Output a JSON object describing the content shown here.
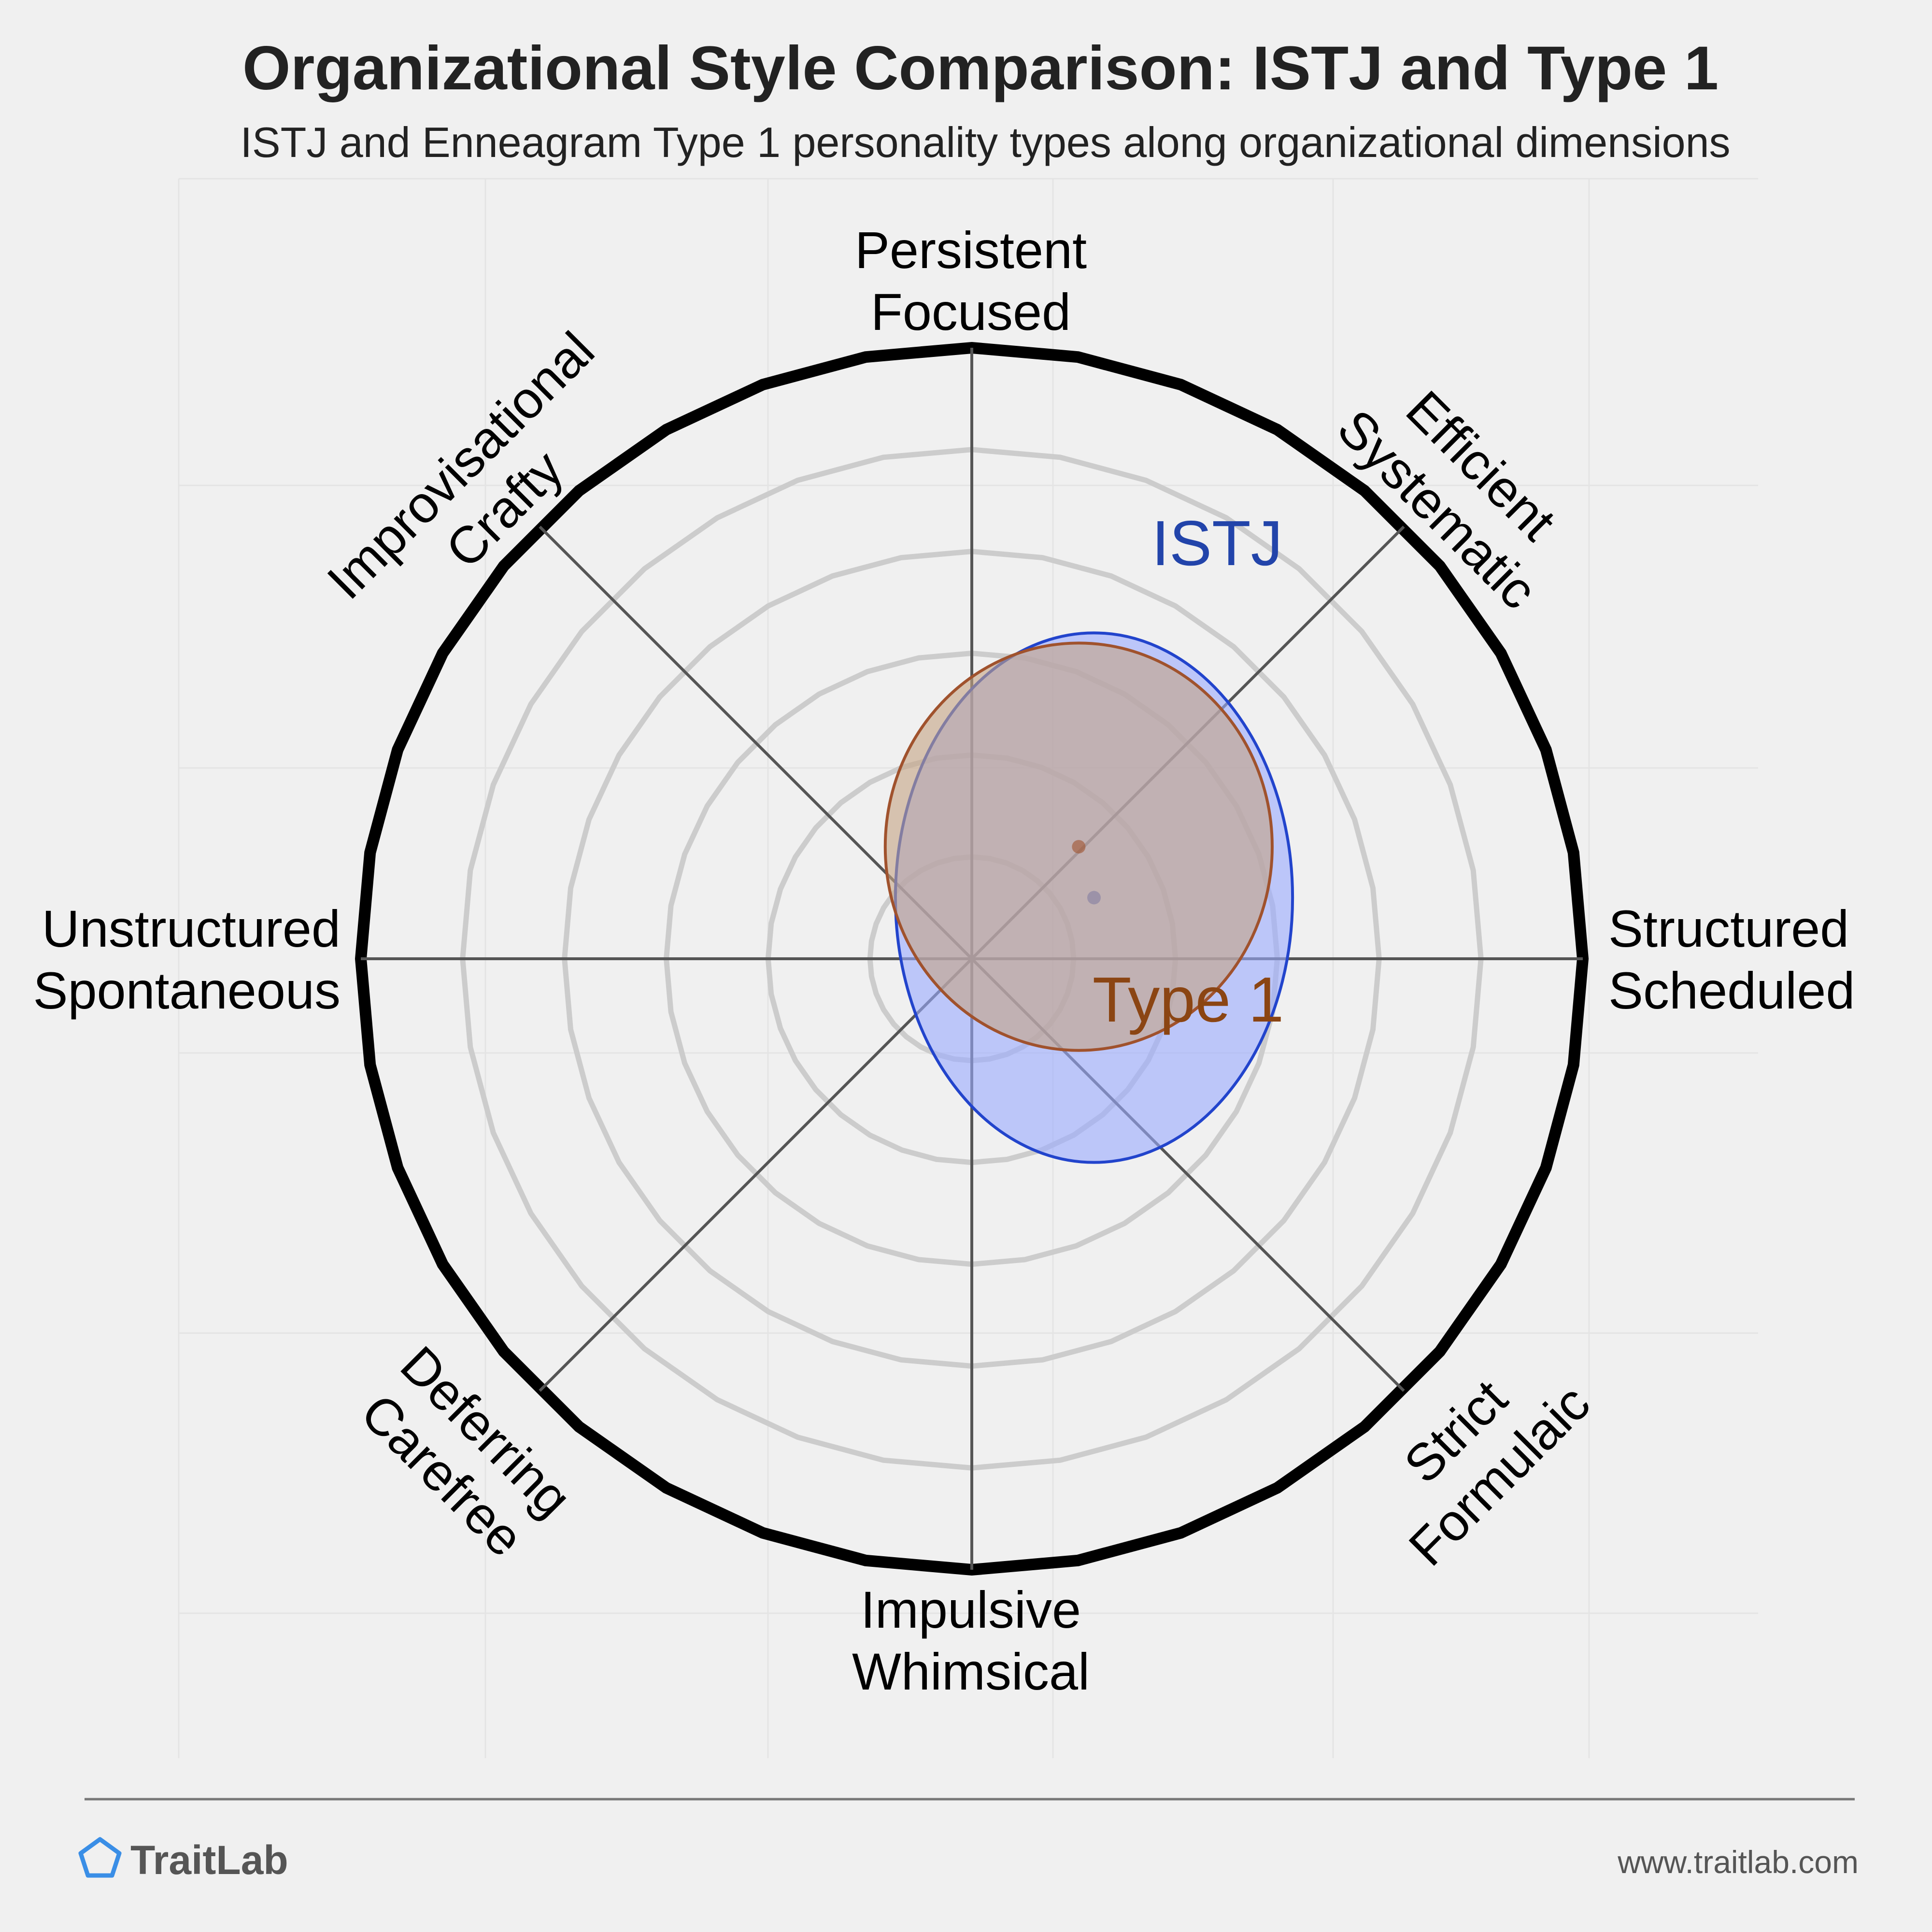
{
  "chart_data": {
    "type": "scatter",
    "title": "Organizational Style Comparison: ISTJ and Type 1",
    "subtitle": "ISTJ and Enneagram Type 1 personality types along organizational dimensions",
    "axes": [
      {
        "id": "right",
        "angle_deg": 0,
        "lines": [
          "Structured",
          "Scheduled"
        ]
      },
      {
        "id": "top-right",
        "angle_deg": 45,
        "lines": [
          "Efficient",
          "Systematic"
        ]
      },
      {
        "id": "top",
        "angle_deg": 90,
        "lines": [
          "Persistent",
          "Focused"
        ]
      },
      {
        "id": "top-left",
        "angle_deg": 135,
        "lines": [
          "Improvisational",
          "Crafty"
        ]
      },
      {
        "id": "left",
        "angle_deg": 180,
        "lines": [
          "Unstructured",
          "Spontaneous"
        ]
      },
      {
        "id": "bottom-left",
        "angle_deg": 225,
        "lines": [
          "Deferring",
          "Carefree"
        ]
      },
      {
        "id": "bottom",
        "angle_deg": 270,
        "lines": [
          "Impulsive",
          "Whimsical"
        ]
      },
      {
        "id": "bottom-right",
        "angle_deg": 315,
        "lines": [
          "Strict",
          "Formulaic"
        ]
      }
    ],
    "rings": [
      1,
      2,
      3,
      4,
      5,
      6
    ],
    "range": 6,
    "grid": true,
    "series": [
      {
        "name": "Type 1",
        "center": [
          1.2,
          0.6
        ],
        "radius": [
          1.95,
          2.6
        ],
        "fill": "#99aaff",
        "fill_opacity": 0.6,
        "stroke": "#2244cc",
        "label_color": "#8b4513"
      },
      {
        "name": "ISTJ",
        "center": [
          1.05,
          1.1
        ],
        "radius": [
          1.9,
          2.0
        ],
        "fill": "#c4a484",
        "fill_opacity": 0.6,
        "stroke": "#a0522d",
        "label_color": "#2244aa"
      }
    ]
  },
  "footer": {
    "brand": "TraitLab",
    "url": "www.traitlab.com"
  },
  "colors": {
    "background": "#f0f0f0",
    "outer_ring": "#000000",
    "grid_ring": "#cccccc",
    "spoke": "#555555",
    "logo": "#3a8ee6"
  }
}
